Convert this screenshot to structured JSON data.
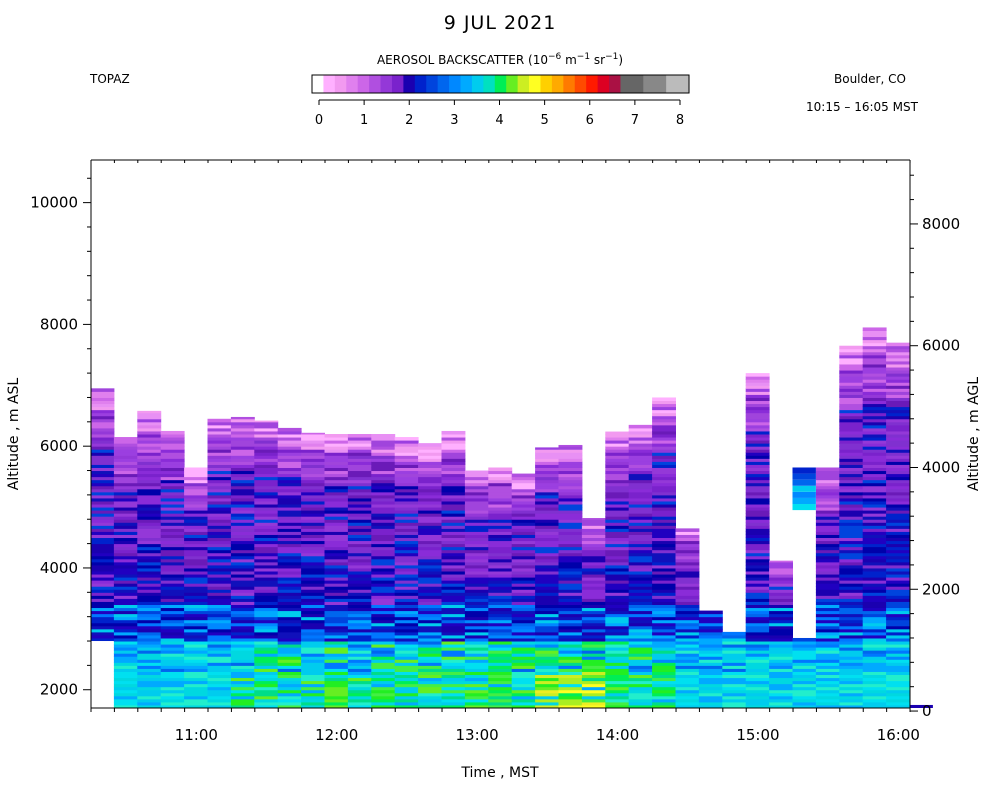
{
  "header": {
    "date": "9 JUL 2021",
    "instrument": "TOPAZ",
    "location": "Boulder, CO",
    "time_range": "10:15 – 16:05 MST"
  },
  "colorbar": {
    "title_prefix": "AEROSOL BACKSCATTER (10",
    "title_exp1": "−6",
    "title_mid": " m",
    "title_exp2": "−1",
    "title_mid2": " sr",
    "title_exp3": "−1",
    "title_suffix": ")",
    "ticks": [
      "0",
      "1",
      "2",
      "3",
      "4",
      "5",
      "6",
      "7",
      "8"
    ],
    "colors": [
      "#ffffff",
      "#ffb0ff",
      "#f29af0",
      "#e080ee",
      "#cc66e8",
      "#b04fe0",
      "#9438d8",
      "#7a22cc",
      "#1a00b0",
      "#0022cc",
      "#0044dd",
      "#0066ee",
      "#0088ff",
      "#00aaff",
      "#00ccee",
      "#00e0c0",
      "#00ee55",
      "#66ee22",
      "#ccee22",
      "#ffff22",
      "#ffd000",
      "#ffaa00",
      "#ff7a00",
      "#ff4a00",
      "#ff1a00",
      "#dd0022",
      "#aa1144",
      "#666666",
      "#666666",
      "#888888",
      "#888888",
      "#bbbbbb",
      "#bbbbbb"
    ]
  },
  "chart_data": {
    "type": "heatmap",
    "xlabel": "Time , MST",
    "ylabel_left": "Altitude , m ASL",
    "ylabel_right": "Altitude , m AGL",
    "x_range_hours": [
      10.25,
      16.083
    ],
    "x_ticks": [
      "11:00",
      "12:00",
      "13:00",
      "14:00",
      "15:00",
      "16:00"
    ],
    "y_range_asl": [
      1700,
      10700
    ],
    "y_ticks_left": [
      "2000",
      "4000",
      "6000",
      "8000",
      "10000"
    ],
    "y_ticks_right": [
      "0",
      "2000",
      "4000",
      "6000",
      "8000"
    ],
    "surface_offset_m": 1650,
    "profiles_top_asl": [
      6950,
      6150,
      6580,
      6250,
      5650,
      6450,
      6480,
      6420,
      6300,
      6220,
      6200,
      6200,
      6200,
      6150,
      6050,
      6250,
      5600,
      5650,
      5550,
      5980,
      6020,
      4820,
      6240,
      6350,
      6800,
      4650,
      3300,
      2950,
      7200,
      4120,
      2850,
      5650,
      7650,
      7950,
      7700,
      1700
    ]
  }
}
